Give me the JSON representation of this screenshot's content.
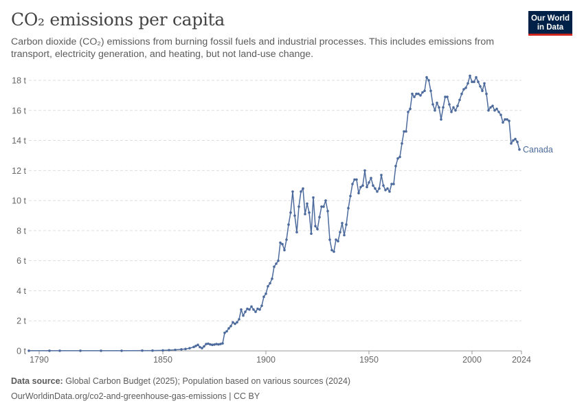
{
  "header": {
    "title": "CO₂ emissions per capita",
    "subtitle": "Carbon dioxide (CO₂) emissions from burning fossil fuels and industrial processes. This includes emissions from transport, electricity generation, and heating, but not land-use change."
  },
  "logo": {
    "line1": "Our World",
    "line2": "in Data"
  },
  "footer": {
    "source_label": "Data source:",
    "source_text": "Global Carbon Budget (2025); Population based on various sources (2024)",
    "url_license": "OurWorldinData.org/co2-and-greenhouse-gas-emissions | CC BY"
  },
  "colors": {
    "series": "#4c6a9c",
    "grid": "#dddddd",
    "text": "#5b5b5b",
    "logo_bg": "#002147",
    "logo_accent": "#ce261e"
  },
  "chart_data": {
    "type": "line",
    "xlim": [
      1785,
      2024
    ],
    "ylim": [
      0,
      18
    ],
    "x_ticks": [
      1790,
      1850,
      1900,
      1950,
      2000,
      2024
    ],
    "y_ticks": [
      {
        "value": 0,
        "label": "0 t"
      },
      {
        "value": 2,
        "label": "2 t"
      },
      {
        "value": 4,
        "label": "4 t"
      },
      {
        "value": 6,
        "label": "6 t"
      },
      {
        "value": 8,
        "label": "8 t"
      },
      {
        "value": 10,
        "label": "10 t"
      },
      {
        "value": 12,
        "label": "12 t"
      },
      {
        "value": 14,
        "label": "14 t"
      },
      {
        "value": 16,
        "label": "16 t"
      },
      {
        "value": 18,
        "label": "18 t"
      }
    ],
    "grid": "horizontal dashed",
    "series": [
      {
        "name": "Canada",
        "label_position": "end-of-line",
        "points": [
          [
            1785,
            0.01
          ],
          [
            1795,
            0.01
          ],
          [
            1800,
            0.01
          ],
          [
            1810,
            0.01
          ],
          [
            1820,
            0.01
          ],
          [
            1830,
            0.01
          ],
          [
            1840,
            0.02
          ],
          [
            1845,
            0.02
          ],
          [
            1850,
            0.03
          ],
          [
            1853,
            0.05
          ],
          [
            1856,
            0.07
          ],
          [
            1859,
            0.1
          ],
          [
            1861,
            0.13
          ],
          [
            1863,
            0.18
          ],
          [
            1865,
            0.26
          ],
          [
            1866,
            0.33
          ],
          [
            1867,
            0.4
          ],
          [
            1868,
            0.25
          ],
          [
            1869,
            0.18
          ],
          [
            1870,
            0.3
          ],
          [
            1871,
            0.45
          ],
          [
            1872,
            0.48
          ],
          [
            1873,
            0.43
          ],
          [
            1874,
            0.4
          ],
          [
            1875,
            0.42
          ],
          [
            1876,
            0.45
          ],
          [
            1877,
            0.43
          ],
          [
            1878,
            0.46
          ],
          [
            1879,
            0.5
          ],
          [
            1880,
            1.2
          ],
          [
            1881,
            1.3
          ],
          [
            1882,
            1.5
          ],
          [
            1883,
            1.65
          ],
          [
            1884,
            1.9
          ],
          [
            1885,
            1.8
          ],
          [
            1886,
            1.9
          ],
          [
            1887,
            2.1
          ],
          [
            1888,
            2.75
          ],
          [
            1889,
            2.35
          ],
          [
            1890,
            2.6
          ],
          [
            1891,
            2.8
          ],
          [
            1892,
            2.75
          ],
          [
            1893,
            2.95
          ],
          [
            1894,
            2.75
          ],
          [
            1895,
            2.6
          ],
          [
            1896,
            2.8
          ],
          [
            1897,
            2.75
          ],
          [
            1898,
            3.0
          ],
          [
            1899,
            3.6
          ],
          [
            1900,
            3.8
          ],
          [
            1901,
            4.3
          ],
          [
            1902,
            4.5
          ],
          [
            1903,
            4.8
          ],
          [
            1904,
            5.6
          ],
          [
            1905,
            5.8
          ],
          [
            1906,
            6.0
          ],
          [
            1907,
            7.2
          ],
          [
            1908,
            7.1
          ],
          [
            1909,
            6.7
          ],
          [
            1910,
            7.4
          ],
          [
            1911,
            8.4
          ],
          [
            1912,
            9.2
          ],
          [
            1913,
            10.6
          ],
          [
            1914,
            9.0
          ],
          [
            1915,
            7.9
          ],
          [
            1916,
            9.6
          ],
          [
            1917,
            10.6
          ],
          [
            1918,
            10.8
          ],
          [
            1919,
            9.1
          ],
          [
            1920,
            9.8
          ],
          [
            1921,
            9.2
          ],
          [
            1922,
            7.8
          ],
          [
            1923,
            10.2
          ],
          [
            1924,
            8.3
          ],
          [
            1925,
            8.1
          ],
          [
            1926,
            8.9
          ],
          [
            1927,
            9.6
          ],
          [
            1928,
            9.6
          ],
          [
            1929,
            10.0
          ],
          [
            1930,
            9.3
          ],
          [
            1931,
            7.4
          ],
          [
            1932,
            6.7
          ],
          [
            1933,
            6.6
          ],
          [
            1934,
            7.4
          ],
          [
            1935,
            7.3
          ],
          [
            1936,
            7.9
          ],
          [
            1937,
            8.5
          ],
          [
            1938,
            7.7
          ],
          [
            1939,
            8.4
          ],
          [
            1940,
            9.5
          ],
          [
            1941,
            10.3
          ],
          [
            1942,
            11.1
          ],
          [
            1943,
            11.4
          ],
          [
            1944,
            11.4
          ],
          [
            1945,
            10.5
          ],
          [
            1946,
            10.9
          ],
          [
            1947,
            11.0
          ],
          [
            1948,
            12.0
          ],
          [
            1949,
            10.9
          ],
          [
            1950,
            11.2
          ],
          [
            1951,
            11.5
          ],
          [
            1952,
            11.0
          ],
          [
            1953,
            10.8
          ],
          [
            1954,
            10.6
          ],
          [
            1955,
            10.8
          ],
          [
            1956,
            11.7
          ],
          [
            1957,
            11.0
          ],
          [
            1958,
            10.7
          ],
          [
            1959,
            10.8
          ],
          [
            1960,
            10.6
          ],
          [
            1961,
            11.1
          ],
          [
            1962,
            11.1
          ],
          [
            1963,
            12.3
          ],
          [
            1964,
            12.8
          ],
          [
            1965,
            12.9
          ],
          [
            1966,
            13.8
          ],
          [
            1967,
            14.6
          ],
          [
            1968,
            14.6
          ],
          [
            1969,
            15.9
          ],
          [
            1970,
            16.1
          ],
          [
            1971,
            17.1
          ],
          [
            1972,
            16.9
          ],
          [
            1973,
            17.1
          ],
          [
            1974,
            17.1
          ],
          [
            1975,
            17.0
          ],
          [
            1976,
            17.2
          ],
          [
            1977,
            17.3
          ],
          [
            1978,
            18.2
          ],
          [
            1979,
            18.0
          ],
          [
            1980,
            17.3
          ],
          [
            1981,
            16.4
          ],
          [
            1982,
            16.0
          ],
          [
            1983,
            16.5
          ],
          [
            1984,
            16.2
          ],
          [
            1985,
            15.4
          ],
          [
            1986,
            16.2
          ],
          [
            1987,
            16.9
          ],
          [
            1988,
            16.9
          ],
          [
            1989,
            16.4
          ],
          [
            1990,
            15.9
          ],
          [
            1991,
            16.2
          ],
          [
            1992,
            16.0
          ],
          [
            1993,
            16.3
          ],
          [
            1994,
            16.7
          ],
          [
            1995,
            17.1
          ],
          [
            1996,
            17.4
          ],
          [
            1997,
            17.5
          ],
          [
            1998,
            17.8
          ],
          [
            1999,
            18.3
          ],
          [
            2000,
            17.9
          ],
          [
            2001,
            17.9
          ],
          [
            2002,
            18.2
          ],
          [
            2003,
            17.9
          ],
          [
            2004,
            17.6
          ],
          [
            2005,
            17.3
          ],
          [
            2006,
            17.8
          ],
          [
            2007,
            17.1
          ],
          [
            2008,
            16.0
          ],
          [
            2009,
            16.2
          ],
          [
            2010,
            16.3
          ],
          [
            2011,
            16.0
          ],
          [
            2012,
            16.1
          ],
          [
            2013,
            15.9
          ],
          [
            2014,
            15.7
          ],
          [
            2015,
            15.2
          ],
          [
            2016,
            15.4
          ],
          [
            2017,
            15.4
          ],
          [
            2018,
            15.3
          ],
          [
            2019,
            13.8
          ],
          [
            2020,
            14.0
          ],
          [
            2021,
            14.1
          ],
          [
            2022,
            13.9
          ],
          [
            2023,
            13.4
          ]
        ]
      }
    ]
  }
}
